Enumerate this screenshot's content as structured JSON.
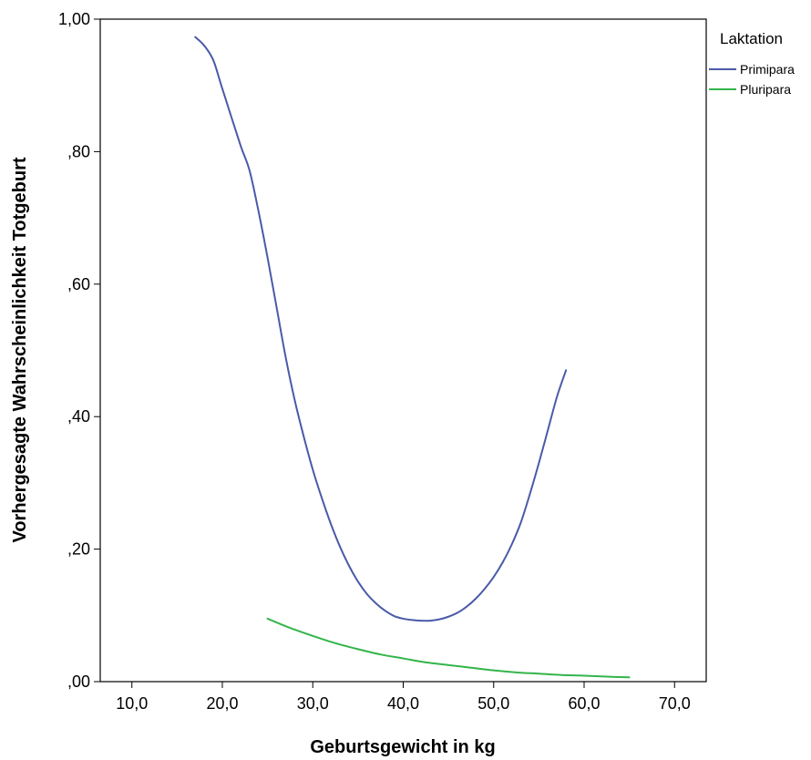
{
  "chart_data": {
    "type": "line",
    "xlabel": "Geburtsgewicht in kg",
    "ylabel": "Vorhergesagte Wahrscheinlichkeit Totgeburt",
    "xlim": [
      6.5,
      73.5
    ],
    "ylim": [
      0,
      1
    ],
    "x_ticks": [
      10,
      20,
      30,
      40,
      50,
      60,
      70
    ],
    "x_tick_labels": [
      "10,0",
      "20,0",
      "30,0",
      "40,0",
      "50,0",
      "60,0",
      "70,0"
    ],
    "y_ticks": [
      0,
      0.2,
      0.4,
      0.6,
      0.8,
      1.0
    ],
    "y_tick_labels": [
      ",00",
      ",20",
      ",40",
      ",60",
      ",80",
      "1,00"
    ],
    "grid": false,
    "legend": {
      "title": "Laktation",
      "position": "right"
    },
    "series": [
      {
        "name": "Primipara",
        "color": "#4a5aa8",
        "x": [
          17.0,
          18.0,
          19.0,
          20.0,
          22.0,
          23.0,
          24.0,
          25.0,
          26.0,
          27.0,
          28.0,
          29.0,
          30.0,
          31.0,
          32.0,
          33.0,
          34.0,
          35.0,
          36.0,
          37.0,
          38.0,
          39.0,
          40.0,
          41.0,
          42.0,
          43.0,
          44.0,
          45.0,
          46.0,
          47.0,
          48.0,
          49.0,
          50.0,
          51.0,
          52.0,
          53.0,
          54.0,
          55.0,
          56.0,
          57.0,
          58.0
        ],
        "y": [
          0.973,
          0.96,
          0.938,
          0.895,
          0.81,
          0.772,
          0.71,
          0.64,
          0.565,
          0.49,
          0.425,
          0.37,
          0.32,
          0.277,
          0.238,
          0.204,
          0.175,
          0.151,
          0.132,
          0.118,
          0.107,
          0.099,
          0.095,
          0.093,
          0.092,
          0.092,
          0.094,
          0.098,
          0.104,
          0.113,
          0.125,
          0.14,
          0.158,
          0.18,
          0.207,
          0.24,
          0.283,
          0.33,
          0.38,
          0.43,
          0.47
        ]
      },
      {
        "name": "Pluripara",
        "color": "#33b54a",
        "x": [
          25,
          27.5,
          30,
          32.5,
          35,
          37.5,
          40,
          42.5,
          45,
          47.5,
          50,
          52.5,
          55,
          57.5,
          60,
          62.5,
          65
        ],
        "y": [
          0.095,
          0.081,
          0.069,
          0.058,
          0.049,
          0.041,
          0.035,
          0.029,
          0.025,
          0.021,
          0.017,
          0.014,
          0.012,
          0.01,
          0.009,
          0.0075,
          0.0065
        ]
      }
    ]
  }
}
